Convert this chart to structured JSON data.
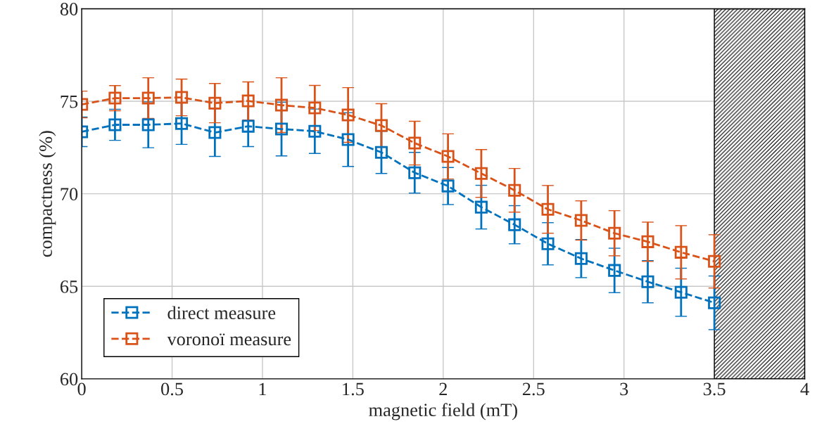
{
  "chart_data": {
    "type": "line",
    "xlabel": "magnetic field (mT)",
    "ylabel": "compactness (%)",
    "x": [
      0,
      0.1842,
      0.3684,
      0.5526,
      0.7368,
      0.9211,
      1.1053,
      1.2895,
      1.4737,
      1.6579,
      1.8421,
      2.0263,
      2.2105,
      2.3947,
      2.5789,
      2.7632,
      2.9474,
      3.1316,
      3.3158,
      3.5
    ],
    "series": [
      {
        "name": "direct measure",
        "color": "#0072bd",
        "values": [
          73.35,
          73.73,
          73.73,
          73.8,
          73.31,
          73.65,
          73.5,
          73.38,
          72.93,
          72.24,
          71.14,
          70.42,
          69.28,
          68.33,
          67.3,
          66.5,
          65.86,
          65.25,
          64.68,
          64.11
        ],
        "errors": [
          0.8,
          0.84,
          1.24,
          1.13,
          1.29,
          1.1,
          1.45,
          1.2,
          1.45,
          1.14,
          1.1,
          1.0,
          1.18,
          1.03,
          1.14,
          1.03,
          1.2,
          1.14,
          1.3,
          1.45
        ]
      },
      {
        "name": "voronoï measure",
        "color": "#d95319",
        "values": [
          74.83,
          75.17,
          75.17,
          75.21,
          74.9,
          75.02,
          74.79,
          74.64,
          74.26,
          73.69,
          72.74,
          72.02,
          71.1,
          70.19,
          69.16,
          68.56,
          67.87,
          67.41,
          66.84,
          66.35
        ],
        "errors": [
          0.72,
          0.68,
          1.1,
          0.99,
          1.06,
          1.03,
          1.48,
          1.22,
          1.48,
          1.18,
          1.18,
          1.22,
          1.29,
          1.18,
          1.29,
          1.06,
          1.22,
          1.06,
          1.44,
          1.44
        ]
      }
    ],
    "xlim": [
      0,
      4
    ],
    "xticks": [
      0,
      0.5,
      1,
      1.5,
      2,
      2.5,
      3,
      3.5,
      4
    ],
    "ylim": [
      60,
      80
    ],
    "yticks": [
      60,
      65,
      70,
      75,
      80
    ],
    "bands": [
      {
        "axis": "x",
        "from": 3.5,
        "to": 4,
        "color": "#000000"
      }
    ],
    "grid": true,
    "legend": "bottom left",
    "marker": "square",
    "line_style": "dashed"
  }
}
